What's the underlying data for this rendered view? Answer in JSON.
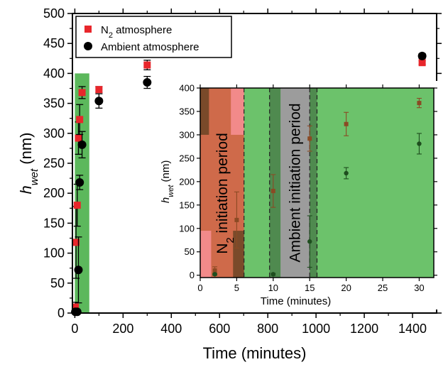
{
  "chart_data": [
    {
      "type": "scatter",
      "xlabel": "Time (minutes)",
      "ylabel_main": "h",
      "ylabel_sub": "wet",
      "ylabel_unit": " (nm)",
      "xlim": [
        -10,
        1500
      ],
      "ylim": [
        0,
        500
      ],
      "xticks": [
        0,
        200,
        400,
        600,
        800,
        1000,
        1200,
        1400
      ],
      "yticks": [
        0,
        50,
        100,
        150,
        200,
        250,
        300,
        350,
        400,
        450,
        500
      ],
      "shaded_region": {
        "x": [
          0,
          60
        ],
        "y": [
          0,
          400
        ],
        "color": "#5cb85c"
      },
      "legend_position": "top-left",
      "series": [
        {
          "name": "N₂ atmosphere",
          "name_main": "N",
          "name_sub": "2",
          "name_rest": " atmosphere",
          "marker": "square",
          "color": "#e8262b",
          "points": [
            {
              "x": 2,
              "y": 10,
              "err": 8
            },
            {
              "x": 5,
              "y": 118,
              "err": 60
            },
            {
              "x": 10,
              "y": 180,
              "err": 35
            },
            {
              "x": 15,
              "y": 292,
              "err": 27
            },
            {
              "x": 20,
              "y": 323,
              "err": 25
            },
            {
              "x": 30,
              "y": 368,
              "err": 10
            },
            {
              "x": 100,
              "y": 373,
              "err": 5
            },
            {
              "x": 300,
              "y": 414,
              "err": 8
            },
            {
              "x": 1440,
              "y": 418,
              "err": 3
            }
          ]
        },
        {
          "name": "Ambient atmosphere",
          "marker": "circle",
          "color": "#000000",
          "points": [
            {
              "x": 2,
              "y": 2,
              "err": 2
            },
            {
              "x": 10,
              "y": 2,
              "err": 2
            },
            {
              "x": 15,
              "y": 72,
              "err": 55
            },
            {
              "x": 20,
              "y": 218,
              "err": 12
            },
            {
              "x": 30,
              "y": 281,
              "err": 22
            },
            {
              "x": 100,
              "y": 354,
              "err": 12
            },
            {
              "x": 300,
              "y": 385,
              "err": 10
            },
            {
              "x": 1440,
              "y": 429,
              "err": 4
            }
          ]
        }
      ]
    },
    {
      "type": "scatter",
      "inset": true,
      "xlabel": "Time (minutes)",
      "ylabel_main": "h",
      "ylabel_sub": "wet",
      "ylabel_unit": " (nm)",
      "xlim": [
        0,
        32
      ],
      "ylim": [
        -5,
        400
      ],
      "xticks": [
        0,
        5,
        10,
        15,
        20,
        25,
        30
      ],
      "yticks": [
        0,
        50,
        100,
        150,
        200,
        250,
        300,
        350,
        400
      ],
      "background": "#6cc26b",
      "regions": [
        {
          "label_main": "N",
          "label_sub": "2",
          "label_rest": " initiation period",
          "x": [
            0,
            6
          ],
          "color": "#cf6a4a"
        },
        {
          "label": "Ambient initiation period",
          "x": [
            11,
            15
          ],
          "color": "#9c9c9c"
        }
      ],
      "overlays": [
        {
          "x": [
            0,
            1.2
          ],
          "y": [
            300,
            400
          ],
          "color": "#7a4a2a"
        },
        {
          "x": [
            4.2,
            6
          ],
          "y": [
            300,
            400
          ],
          "color": "#f28a8a"
        },
        {
          "x": [
            0,
            1.5
          ],
          "y": [
            -5,
            95
          ],
          "color": "#f28a8a"
        },
        {
          "x": [
            4.5,
            6
          ],
          "y": [
            -5,
            95
          ],
          "color": "#7a4a2a"
        },
        {
          "x": [
            9.5,
            11
          ],
          "y": [
            -5,
            400
          ],
          "color": "#4f8a4f"
        },
        {
          "x": [
            15,
            16
          ],
          "y": [
            -5,
            400
          ],
          "color": "#4f8a4f"
        }
      ],
      "dashed_lines_x": [
        6,
        9.5,
        15,
        16
      ],
      "series": [
        {
          "name": "N₂ atmosphere",
          "marker": "square",
          "color": "#8b4a24",
          "points": [
            {
              "x": 2,
              "y": 10,
              "err": 8
            },
            {
              "x": 5,
              "y": 118,
              "err": 60
            },
            {
              "x": 10,
              "y": 180,
              "err": 35
            },
            {
              "x": 15,
              "y": 292,
              "err": 27
            },
            {
              "x": 20,
              "y": 323,
              "err": 25
            },
            {
              "x": 30,
              "y": 368,
              "err": 10
            }
          ]
        },
        {
          "name": "Ambient atmosphere",
          "marker": "circle",
          "color": "#1e4d1e",
          "points": [
            {
              "x": 2,
              "y": 2,
              "err": 2
            },
            {
              "x": 10,
              "y": 2,
              "err": 2
            },
            {
              "x": 15,
              "y": 72,
              "err": 55
            },
            {
              "x": 20,
              "y": 218,
              "err": 12
            },
            {
              "x": 30,
              "y": 281,
              "err": 22
            }
          ]
        }
      ]
    }
  ]
}
